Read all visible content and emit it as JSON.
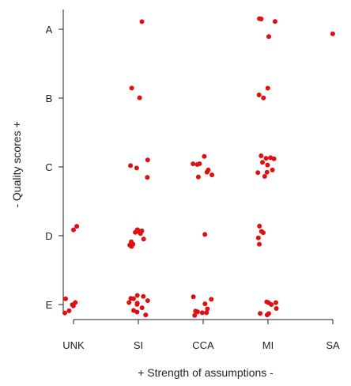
{
  "chart_data": {
    "type": "scatter",
    "title": "",
    "xlabel": "+   Strength of assumptions   -",
    "ylabel": "-   Quality scores   +",
    "x_categories": [
      "UNK",
      "SI",
      "CCA",
      "MI",
      "SA"
    ],
    "y_categories": [
      "E",
      "D",
      "C",
      "B",
      "A"
    ],
    "grid": false,
    "legend": "none",
    "point_color": "#e01010",
    "series": [
      {
        "points": [
          {
            "x": "UNK",
            "y": "E"
          },
          {
            "x": "UNK",
            "y": "E"
          },
          {
            "x": "UNK",
            "y": "E"
          },
          {
            "x": "UNK",
            "y": "E"
          },
          {
            "x": "UNK",
            "y": "E"
          },
          {
            "x": "UNK",
            "y": "E"
          },
          {
            "x": "UNK",
            "y": "D"
          },
          {
            "x": "UNK",
            "y": "D"
          },
          {
            "x": "SI",
            "y": "A"
          },
          {
            "x": "SI",
            "y": "B"
          },
          {
            "x": "SI",
            "y": "B"
          },
          {
            "x": "SI",
            "y": "C"
          },
          {
            "x": "SI",
            "y": "C"
          },
          {
            "x": "SI",
            "y": "C"
          },
          {
            "x": "SI",
            "y": "C"
          },
          {
            "x": "SI",
            "y": "D"
          },
          {
            "x": "SI",
            "y": "D"
          },
          {
            "x": "SI",
            "y": "D"
          },
          {
            "x": "SI",
            "y": "D"
          },
          {
            "x": "SI",
            "y": "D"
          },
          {
            "x": "SI",
            "y": "D"
          },
          {
            "x": "SI",
            "y": "D"
          },
          {
            "x": "SI",
            "y": "D"
          },
          {
            "x": "SI",
            "y": "D"
          },
          {
            "x": "SI",
            "y": "D"
          },
          {
            "x": "SI",
            "y": "D"
          },
          {
            "x": "SI",
            "y": "E"
          },
          {
            "x": "SI",
            "y": "E"
          },
          {
            "x": "SI",
            "y": "E"
          },
          {
            "x": "SI",
            "y": "E"
          },
          {
            "x": "SI",
            "y": "E"
          },
          {
            "x": "SI",
            "y": "E"
          },
          {
            "x": "SI",
            "y": "E"
          },
          {
            "x": "SI",
            "y": "E"
          },
          {
            "x": "SI",
            "y": "E"
          },
          {
            "x": "SI",
            "y": "E"
          },
          {
            "x": "SI",
            "y": "E"
          },
          {
            "x": "SI",
            "y": "E"
          },
          {
            "x": "CCA",
            "y": "C"
          },
          {
            "x": "CCA",
            "y": "C"
          },
          {
            "x": "CCA",
            "y": "C"
          },
          {
            "x": "CCA",
            "y": "C"
          },
          {
            "x": "CCA",
            "y": "C"
          },
          {
            "x": "CCA",
            "y": "C"
          },
          {
            "x": "CCA",
            "y": "C"
          },
          {
            "x": "CCA",
            "y": "C"
          },
          {
            "x": "CCA",
            "y": "D"
          },
          {
            "x": "CCA",
            "y": "E"
          },
          {
            "x": "CCA",
            "y": "E"
          },
          {
            "x": "CCA",
            "y": "E"
          },
          {
            "x": "CCA",
            "y": "E"
          },
          {
            "x": "CCA",
            "y": "E"
          },
          {
            "x": "CCA",
            "y": "E"
          },
          {
            "x": "CCA",
            "y": "E"
          },
          {
            "x": "CCA",
            "y": "E"
          },
          {
            "x": "CCA",
            "y": "E"
          },
          {
            "x": "MI",
            "y": "A"
          },
          {
            "x": "MI",
            "y": "A"
          },
          {
            "x": "MI",
            "y": "A"
          },
          {
            "x": "MI",
            "y": "A"
          },
          {
            "x": "MI",
            "y": "B"
          },
          {
            "x": "MI",
            "y": "B"
          },
          {
            "x": "MI",
            "y": "B"
          },
          {
            "x": "MI",
            "y": "C"
          },
          {
            "x": "MI",
            "y": "C"
          },
          {
            "x": "MI",
            "y": "C"
          },
          {
            "x": "MI",
            "y": "C"
          },
          {
            "x": "MI",
            "y": "C"
          },
          {
            "x": "MI",
            "y": "C"
          },
          {
            "x": "MI",
            "y": "C"
          },
          {
            "x": "MI",
            "y": "C"
          },
          {
            "x": "MI",
            "y": "C"
          },
          {
            "x": "MI",
            "y": "C"
          },
          {
            "x": "MI",
            "y": "D"
          },
          {
            "x": "MI",
            "y": "D"
          },
          {
            "x": "MI",
            "y": "D"
          },
          {
            "x": "MI",
            "y": "D"
          },
          {
            "x": "MI",
            "y": "D"
          },
          {
            "x": "MI",
            "y": "E"
          },
          {
            "x": "MI",
            "y": "E"
          },
          {
            "x": "MI",
            "y": "E"
          },
          {
            "x": "MI",
            "y": "E"
          },
          {
            "x": "MI",
            "y": "E"
          },
          {
            "x": "MI",
            "y": "E"
          },
          {
            "x": "MI",
            "y": "E"
          },
          {
            "x": "MI",
            "y": "E"
          },
          {
            "x": "SA",
            "y": "A"
          }
        ]
      }
    ]
  }
}
